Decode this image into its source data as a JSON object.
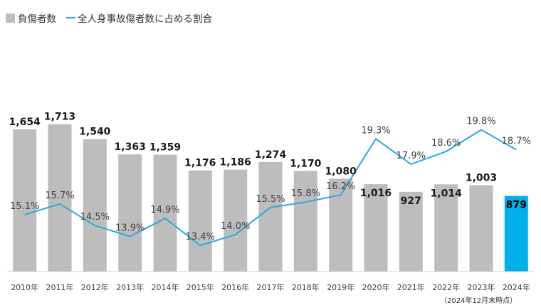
{
  "legend": {
    "bar_label": "負傷者数",
    "line_label": "全人身事故傷者数に占める割合"
  },
  "footnote": "（2024年12月末時点）",
  "colors": {
    "bar": "#bdbdbd",
    "bar_highlight": "#00b0ea",
    "line": "#2aa9db",
    "axis_text": "#404040",
    "value_text": "#1a1a1a",
    "percent_text": "#404040"
  },
  "chart_data": {
    "type": "bar",
    "categories": [
      "2010年",
      "2011年",
      "2012年",
      "2013年",
      "2014年",
      "2015年",
      "2016年",
      "2017年",
      "2018年",
      "2019年",
      "2020年",
      "2021年",
      "2022年",
      "2023年",
      "2024年"
    ],
    "series": [
      {
        "name": "負傷者数",
        "type": "bar",
        "values": [
          1654,
          1713,
          1540,
          1363,
          1359,
          1176,
          1186,
          1274,
          1170,
          1080,
          1016,
          927,
          1014,
          1003,
          879
        ],
        "labels": [
          "1,654",
          "1,713",
          "1,540",
          "1,363",
          "1,359",
          "1,176",
          "1,186",
          "1,274",
          "1,170",
          "1,080",
          "1,016",
          "927",
          "1,014",
          "1,003",
          "879"
        ],
        "highlight_index": 14
      },
      {
        "name": "全人身事故傷者数に占める割合",
        "type": "line",
        "values": [
          15.1,
          15.7,
          14.5,
          13.9,
          14.9,
          13.4,
          14.0,
          15.5,
          15.8,
          16.2,
          19.3,
          17.9,
          18.6,
          19.8,
          18.7
        ],
        "labels": [
          "15.1%",
          "15.7%",
          "14.5%",
          "13.9%",
          "14.9%",
          "13.4%",
          "14.0%",
          "15.5%",
          "15.8%",
          "16.2%",
          "19.3%",
          "17.9%",
          "18.6%",
          "19.8%",
          "18.7%"
        ],
        "unit": "%"
      }
    ],
    "grid": false,
    "legend_position": "top-left"
  }
}
